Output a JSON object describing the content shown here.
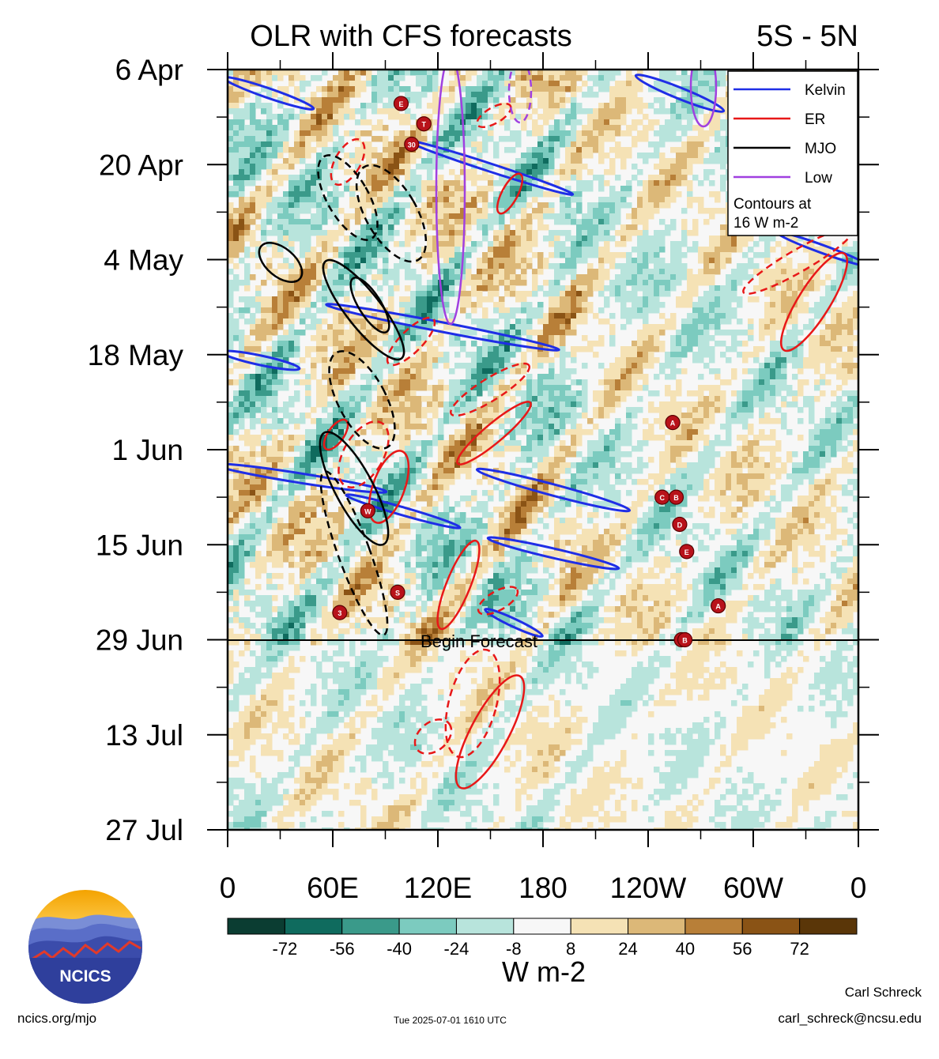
{
  "page": {
    "footer_left": "ncics.org/mjo",
    "footer_center": "Tue 2025-07-01 1610 UTC",
    "author_name": "Carl Schreck",
    "author_email": "carl_schreck@ncsu.edu",
    "logo_text": "NCICS"
  },
  "chart_data": {
    "type": "heatmap",
    "title": "OLR with CFS forecasts",
    "subtitle": "5S - 5N",
    "x_tick_labels": [
      "0",
      "60E",
      "120E",
      "180",
      "120W",
      "60W",
      "0"
    ],
    "x_range_deg_east": [
      0,
      360
    ],
    "y_tick_labels": [
      "6 Apr",
      "20 Apr",
      "4 May",
      "18 May",
      "1 Jun",
      "15 Jun",
      "29 Jun",
      "13 Jul",
      "27 Jul"
    ],
    "y_range_days": [
      0,
      112
    ],
    "forecast_start_label": "Begin Forecast",
    "forecast_start_day": 84,
    "legend": {
      "placement": "top-right",
      "entries": [
        {
          "name": "Kelvin",
          "color": "#1f2ee6"
        },
        {
          "name": "ER",
          "color": "#e81818"
        },
        {
          "name": "MJO",
          "color": "#000000"
        },
        {
          "name": "Low",
          "color": "#a040e0"
        }
      ],
      "note_line1": "Contours at",
      "note_line2": "16 W m-2"
    },
    "colorbar": {
      "unit_label": "W m-2",
      "tick_labels": [
        "-72",
        "-56",
        "-40",
        "-24",
        "-8",
        "8",
        "24",
        "40",
        "56",
        "72"
      ],
      "colors": [
        "#0b3d32",
        "#0f6b5e",
        "#3a9a8a",
        "#7ccbbf",
        "#b8e4dc",
        "#f7f7f7",
        "#f5e2b5",
        "#dcb878",
        "#b87f38",
        "#8a5315",
        "#5a3608"
      ]
    },
    "storm_labels": [
      {
        "label": "E",
        "lon": 99,
        "day": 5
      },
      {
        "label": "T",
        "lon": 112,
        "day": 8
      },
      {
        "label": "30",
        "lon": 105,
        "day": 11
      },
      {
        "label": "A",
        "lon": 254,
        "day": 52
      },
      {
        "label": "C",
        "lon": 248,
        "day": 63
      },
      {
        "label": "B",
        "lon": 256,
        "day": 63
      },
      {
        "label": "W",
        "lon": 80,
        "day": 65
      },
      {
        "label": "D",
        "lon": 258,
        "day": 67
      },
      {
        "label": "E",
        "lon": 262,
        "day": 71
      },
      {
        "label": "S",
        "lon": 97,
        "day": 77
      },
      {
        "label": "3",
        "lon": 64,
        "day": 80
      },
      {
        "label": "A",
        "lon": 280,
        "day": 79
      },
      {
        "label": "F",
        "lon": 259,
        "day": 84
      },
      {
        "label": "B",
        "lon": 261,
        "day": 84
      }
    ]
  }
}
